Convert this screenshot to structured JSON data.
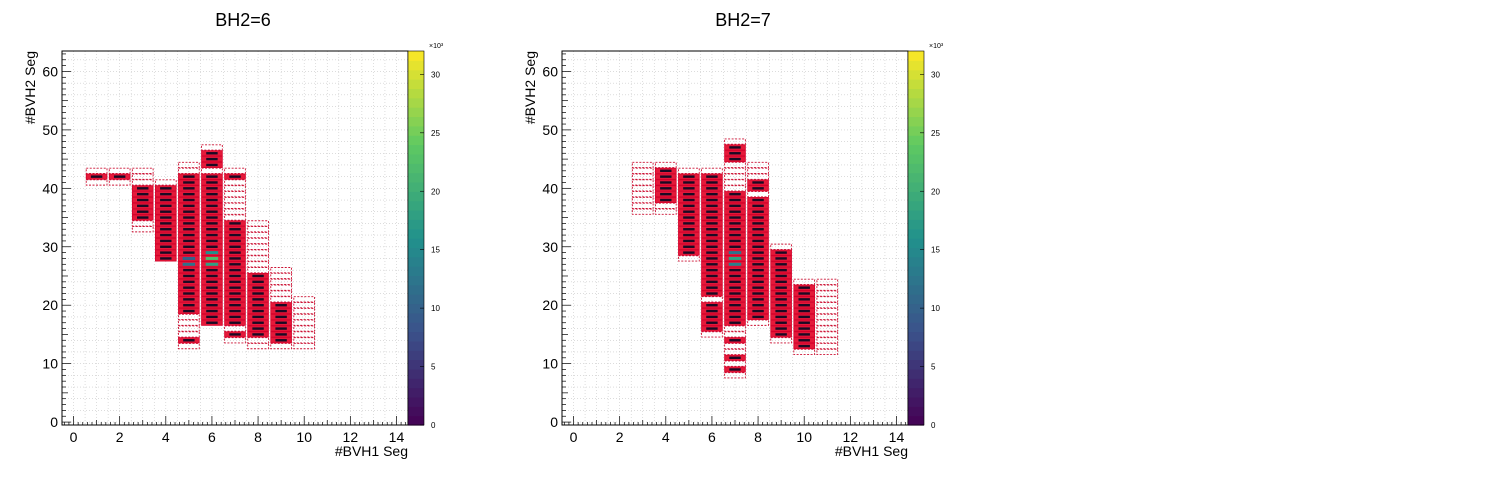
{
  "chart_data": [
    {
      "type": "heatmap",
      "title": "BH2=6",
      "xlabel": "#BVH1 Seg",
      "ylabel": "#BVH2 Seg",
      "xlim": [
        -0.5,
        14.5
      ],
      "ylim": [
        -0.5,
        63.5
      ],
      "xticks": [
        "0",
        "2",
        "4",
        "6",
        "8",
        "10",
        "12",
        "14"
      ],
      "yticks": [
        "0",
        "10",
        "20",
        "30",
        "40",
        "50",
        "60"
      ],
      "colorbar": {
        "min": 0,
        "max": 32,
        "ticks": [
          "0",
          "5",
          "10",
          "15",
          "20",
          "25",
          "30"
        ],
        "exponent": "×10³",
        "colormap": "viridis"
      },
      "grid": true,
      "columns": [
        {
          "x": 1,
          "y_min": 41,
          "y_max": 43,
          "solid": [
            42
          ]
        },
        {
          "x": 2,
          "y_min": 41,
          "y_max": 43,
          "solid": [
            42
          ]
        },
        {
          "x": 3,
          "y_min": 33,
          "y_max": 43,
          "solid": [
            35,
            36,
            37,
            38,
            39,
            40
          ]
        },
        {
          "x": 4,
          "y_min": 28,
          "y_max": 41,
          "solid": [
            28,
            29,
            30,
            31,
            32,
            33,
            34,
            35,
            36,
            37,
            38,
            39,
            40
          ]
        },
        {
          "x": 5,
          "y_min": 13,
          "y_max": 44,
          "solid": [
            14,
            19,
            20,
            21,
            22,
            23,
            24,
            25,
            26,
            27,
            28,
            29,
            30,
            31,
            32,
            33,
            34,
            35,
            36,
            37,
            38,
            39,
            40,
            41,
            42
          ]
        },
        {
          "x": 6,
          "y_min": 17,
          "y_max": 47,
          "solid": [
            17,
            18,
            19,
            20,
            21,
            22,
            23,
            24,
            25,
            26,
            27,
            28,
            29,
            30,
            31,
            32,
            33,
            34,
            35,
            36,
            37,
            38,
            39,
            40,
            41,
            42,
            44,
            45,
            46
          ]
        },
        {
          "x": 7,
          "y_min": 14,
          "y_max": 43,
          "solid": [
            15,
            17,
            18,
            19,
            20,
            21,
            22,
            23,
            24,
            25,
            26,
            27,
            28,
            29,
            30,
            31,
            32,
            33,
            34,
            42
          ]
        },
        {
          "x": 8,
          "y_min": 13,
          "y_max": 34,
          "solid": [
            15,
            16,
            17,
            18,
            19,
            20,
            21,
            22,
            23,
            24,
            25
          ]
        },
        {
          "x": 9,
          "y_min": 13,
          "y_max": 26,
          "solid": [
            14,
            15,
            16,
            17,
            18,
            19,
            20
          ]
        },
        {
          "x": 10,
          "y_min": 13,
          "y_max": 21,
          "solid": []
        }
      ],
      "hot_cells": [
        {
          "x": 5,
          "y": 27,
          "value": 12
        },
        {
          "x": 5,
          "y": 28,
          "value": 10
        },
        {
          "x": 6,
          "y": 27,
          "value": 18
        },
        {
          "x": 6,
          "y": 28,
          "value": 22
        },
        {
          "x": 6,
          "y": 29,
          "value": 16
        }
      ]
    },
    {
      "type": "heatmap",
      "title": "BH2=7",
      "xlabel": "#BVH1 Seg",
      "ylabel": "#BVH2 Seg",
      "xlim": [
        -0.5,
        14.5
      ],
      "ylim": [
        -0.5,
        63.5
      ],
      "xticks": [
        "0",
        "2",
        "4",
        "6",
        "8",
        "10",
        "12",
        "14"
      ],
      "yticks": [
        "0",
        "10",
        "20",
        "30",
        "40",
        "50",
        "60"
      ],
      "colorbar": {
        "min": 0,
        "max": 32,
        "ticks": [
          "0",
          "5",
          "10",
          "15",
          "20",
          "25",
          "30"
        ],
        "exponent": "×10³",
        "colormap": "viridis"
      },
      "grid": true,
      "columns": [
        {
          "x": 3,
          "y_min": 36,
          "y_max": 44,
          "solid": []
        },
        {
          "x": 4,
          "y_min": 36,
          "y_max": 44,
          "solid": [
            38,
            39,
            40,
            41,
            42,
            43
          ]
        },
        {
          "x": 5,
          "y_min": 28,
          "y_max": 43,
          "solid": [
            29,
            30,
            31,
            32,
            33,
            34,
            35,
            36,
            37,
            38,
            39,
            40,
            41,
            42
          ]
        },
        {
          "x": 6,
          "y_min": 15,
          "y_max": 43,
          "solid": [
            16,
            17,
            18,
            19,
            20,
            22,
            23,
            24,
            25,
            26,
            27,
            28,
            29,
            30,
            31,
            32,
            33,
            34,
            35,
            36,
            37,
            38,
            39,
            40,
            41,
            42
          ]
        },
        {
          "x": 7,
          "y_min": 8,
          "y_max": 48,
          "solid": [
            9,
            11,
            14,
            17,
            18,
            19,
            20,
            21,
            22,
            23,
            24,
            25,
            26,
            27,
            28,
            29,
            30,
            31,
            32,
            33,
            34,
            35,
            36,
            37,
            38,
            39,
            45,
            46,
            47
          ]
        },
        {
          "x": 8,
          "y_min": 17,
          "y_max": 44,
          "solid": [
            18,
            19,
            20,
            21,
            22,
            23,
            24,
            25,
            26,
            27,
            28,
            29,
            30,
            31,
            32,
            33,
            34,
            35,
            36,
            37,
            38,
            40,
            41
          ]
        },
        {
          "x": 9,
          "y_min": 14,
          "y_max": 30,
          "solid": [
            15,
            16,
            17,
            18,
            19,
            20,
            21,
            22,
            23,
            24,
            25,
            26,
            27,
            28,
            29
          ]
        },
        {
          "x": 10,
          "y_min": 12,
          "y_max": 24,
          "solid": [
            13,
            14,
            15,
            16,
            17,
            18,
            19,
            20,
            21,
            22,
            23
          ]
        },
        {
          "x": 11,
          "y_min": 12,
          "y_max": 24,
          "solid": []
        }
      ],
      "hot_cells": [
        {
          "x": 7,
          "y": 27,
          "value": 14
        },
        {
          "x": 7,
          "y": 28,
          "value": 18
        },
        {
          "x": 7,
          "y": 29,
          "value": 12
        }
      ]
    }
  ]
}
